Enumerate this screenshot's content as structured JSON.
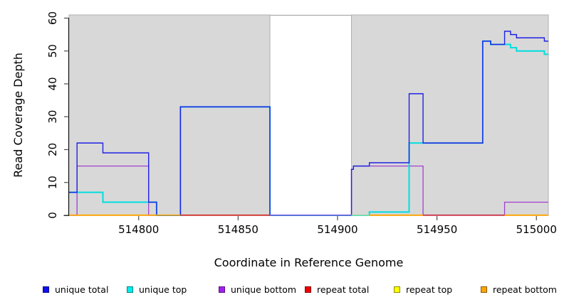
{
  "chart_data": {
    "type": "line",
    "subtype": "step-coverage",
    "title": "",
    "xlabel": "Coordinate in Reference Genome",
    "ylabel": "Read Coverage Depth",
    "xlim": [
      514765,
      515006
    ],
    "ylim": [
      0,
      60
    ],
    "x_ticks": [
      514800,
      514850,
      514900,
      514950,
      515000
    ],
    "y_ticks": [
      0,
      10,
      20,
      30,
      40,
      50,
      60
    ],
    "grid": false,
    "legend_position": "bottom",
    "background_regions": [
      {
        "name": "covered-region-left",
        "x1": 514765,
        "x2": 514866,
        "fill": "#D8D8D8",
        "stroke": "#B0B0B0"
      },
      {
        "name": "uncovered-gap",
        "x1": 514866,
        "x2": 514907,
        "fill": "#FFFFFF"
      },
      {
        "name": "covered-region-right",
        "x1": 514907,
        "x2": 515006,
        "fill": "#D8D8D8",
        "stroke": "#B0B0B0"
      }
    ],
    "series": [
      {
        "name": "unique total",
        "color": "#2020E6",
        "line_width": 1.4,
        "steps": [
          [
            514765,
            7
          ],
          [
            514769,
            22
          ],
          [
            514782,
            19
          ],
          [
            514805,
            4
          ],
          [
            514809,
            0
          ],
          [
            514821,
            33
          ],
          [
            514866,
            0
          ],
          [
            514907,
            14
          ],
          [
            514908,
            15
          ],
          [
            514916,
            16
          ],
          [
            514936,
            37
          ],
          [
            514943,
            22
          ],
          [
            514973,
            53
          ],
          [
            514977,
            52
          ],
          [
            514984,
            56
          ],
          [
            514987,
            55
          ],
          [
            514990,
            54
          ],
          [
            515004,
            53
          ]
        ],
        "x_end": 515006
      },
      {
        "name": "unique top",
        "color": "#00DEDE",
        "line_width": 2.0,
        "steps": [
          [
            514765,
            7
          ],
          [
            514782,
            4
          ],
          [
            514809,
            0
          ],
          [
            514821,
            33
          ],
          [
            514866,
            0
          ],
          [
            514916,
            1
          ],
          [
            514936,
            22
          ],
          [
            514973,
            53
          ],
          [
            514977,
            52
          ],
          [
            514987,
            51
          ],
          [
            514990,
            50
          ],
          [
            515004,
            49
          ]
        ],
        "x_end": 515006
      },
      {
        "name": "unique bottom",
        "color": "#A040D0",
        "line_width": 1.3,
        "steps": [
          [
            514765,
            0
          ],
          [
            514769,
            15
          ],
          [
            514805,
            0
          ],
          [
            514907,
            14
          ],
          [
            514908,
            15
          ],
          [
            514943,
            0
          ],
          [
            514984,
            4
          ]
        ],
        "x_end": 515006
      },
      {
        "name": "repeat total",
        "color": "#E02020",
        "line_width": 1.3,
        "steps": [
          [
            514765,
            0
          ]
        ],
        "x_end": 515006
      },
      {
        "name": "repeat top",
        "color": "#FFFF00",
        "line_width": 1.3,
        "steps": [
          [
            514765,
            0
          ]
        ],
        "x_end": 515006
      },
      {
        "name": "repeat bottom",
        "color": "#FFA500",
        "line_width": 1.3,
        "steps": [
          [
            514765,
            0
          ]
        ],
        "x_end": 515006
      }
    ],
    "baseline_segments": [
      {
        "x1": 514765,
        "x2": 514821,
        "color": "#FFA500"
      },
      {
        "x1": 514821,
        "x2": 514866,
        "color": "#D03030"
      },
      {
        "x1": 514866,
        "x2": 514907,
        "color": "#7A6AD8"
      },
      {
        "x1": 514907,
        "x2": 514916,
        "color": "#9FD89F"
      },
      {
        "x1": 514916,
        "x2": 514943,
        "color": "#FFA500"
      },
      {
        "x1": 514943,
        "x2": 514984,
        "color": "#CC3355"
      },
      {
        "x1": 514984,
        "x2": 515006,
        "color": "#FFA500"
      }
    ]
  },
  "legend": {
    "items": [
      {
        "label": "unique total",
        "color": "#1010EE"
      },
      {
        "label": "unique top",
        "color": "#00EEEE"
      },
      {
        "label": "unique bottom",
        "color": "#A020F0"
      },
      {
        "label": "repeat total",
        "color": "#EE0000"
      },
      {
        "label": "repeat top",
        "color": "#FFFF00"
      },
      {
        "label": "repeat bottom",
        "color": "#FFA500"
      }
    ]
  }
}
